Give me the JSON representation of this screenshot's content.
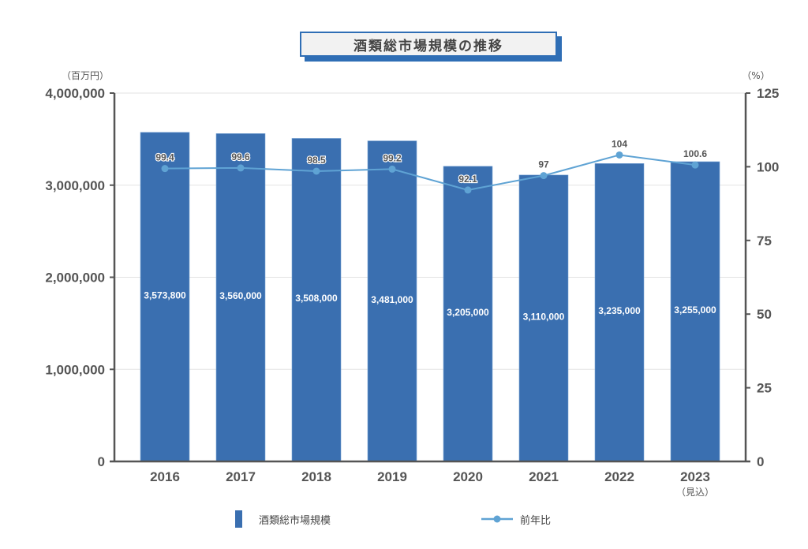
{
  "title": "酒類総市場規模の推移",
  "left_axis_unit": "（百万円）",
  "right_axis_unit": "（%）",
  "x_sublabel_2023": "（見込）",
  "legend": {
    "bar_label": "酒類総市場規模",
    "line_label": "前年比"
  },
  "colors": {
    "bar": "#3a6fb0",
    "line": "#5fa3d4",
    "axis": "#555555",
    "grid": "#e3e3e3"
  },
  "chart_data": {
    "type": "bar+line",
    "title": "酒類総市場規模の推移",
    "categories": [
      "2016",
      "2017",
      "2018",
      "2019",
      "2020",
      "2021",
      "2022",
      "2023"
    ],
    "category_sublabels": [
      "",
      "",
      "",
      "",
      "",
      "",
      "",
      "（見込）"
    ],
    "series": [
      {
        "name": "酒類総市場規模",
        "type": "bar",
        "axis": "left",
        "values": [
          3573800,
          3560000,
          3508000,
          3481000,
          3205000,
          3110000,
          3235000,
          3255000
        ],
        "labels": [
          "3,573,800",
          "3,560,000",
          "3,508,000",
          "3,481,000",
          "3,205,000",
          "3,110,000",
          "3,235,000",
          "3,255,000"
        ]
      },
      {
        "name": "前年比",
        "type": "line",
        "axis": "right",
        "values": [
          99.4,
          99.6,
          98.5,
          99.2,
          92.1,
          97,
          104,
          100.6
        ],
        "labels": [
          "99.4",
          "99.6",
          "98.5",
          "99.2",
          "92.1",
          "97",
          "104",
          "100.6"
        ]
      }
    ],
    "ylabel": "（百万円）",
    "ylabel_right": "（%）",
    "ylim": [
      0,
      4000000
    ],
    "ylim_right": [
      0,
      125
    ],
    "yticks": [
      "0",
      "1,000,000",
      "2,000,000",
      "3,000,000",
      "4,000,000"
    ],
    "yticks_right": [
      "0",
      "25",
      "50",
      "75",
      "100",
      "125"
    ],
    "grid": true,
    "legend_position": "bottom"
  }
}
